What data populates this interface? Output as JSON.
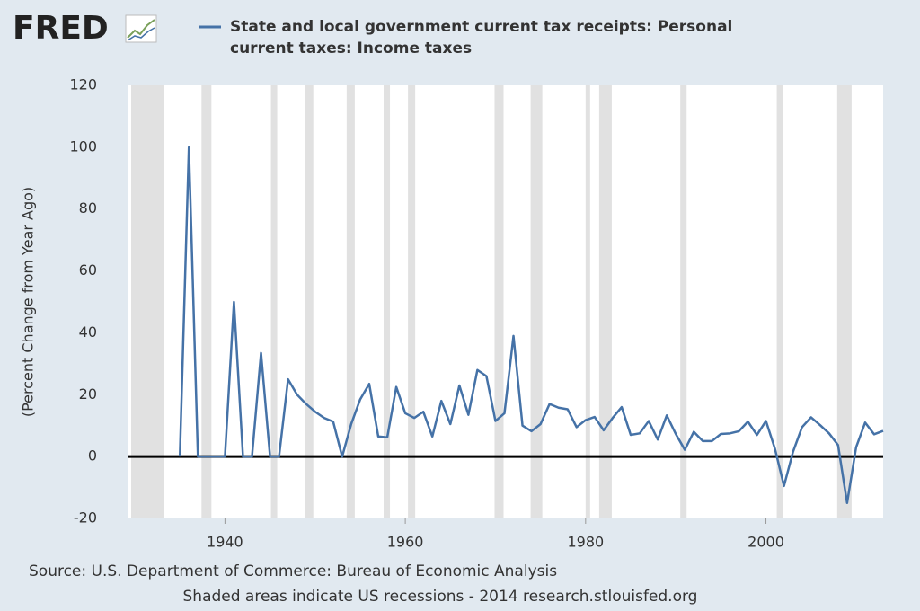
{
  "logo": "FRED",
  "chart_data": {
    "type": "line",
    "y_label": "(Percent Change from Year Ago)",
    "source": "Source: U.S. Department of Commerce: Bureau of Economic Analysis",
    "note": "Shaded areas indicate US recessions - 2014 research.stlouisfed.org",
    "x": [
      1935,
      1936,
      1937,
      1938,
      1939,
      1940,
      1941,
      1942,
      1943,
      1944,
      1945,
      1946,
      1947,
      1948,
      1949,
      1950,
      1951,
      1952,
      1953,
      1954,
      1955,
      1956,
      1957,
      1958,
      1959,
      1960,
      1961,
      1962,
      1963,
      1964,
      1965,
      1966,
      1967,
      1968,
      1969,
      1970,
      1971,
      1972,
      1973,
      1974,
      1975,
      1976,
      1977,
      1978,
      1979,
      1980,
      1981,
      1982,
      1983,
      1984,
      1985,
      1986,
      1987,
      1988,
      1989,
      1990,
      1991,
      1992,
      1993,
      1994,
      1995,
      1996,
      1997,
      1998,
      1999,
      2000,
      2001,
      2002,
      2003,
      2004,
      2005,
      2006,
      2007,
      2008,
      2009,
      2010,
      2011,
      2012,
      2013
    ],
    "series": [
      {
        "name": "State and local government current tax receipts: Personal current taxes: Income taxes",
        "color": "#4572a7",
        "values": [
          0,
          100,
          0,
          0,
          0,
          0,
          50,
          0,
          0,
          33.5,
          0,
          0,
          25,
          20,
          17,
          14.5,
          12.5,
          11.3,
          0,
          10.5,
          18.5,
          23.5,
          6.5,
          6.2,
          22.5,
          14,
          12.5,
          14.5,
          6.5,
          18,
          10.5,
          23,
          13.5,
          28,
          26,
          11.5,
          14,
          39,
          10,
          8.2,
          10.5,
          17,
          15.8,
          15.3,
          9.5,
          11.8,
          12.8,
          8.5,
          12.5,
          16,
          7,
          7.5,
          11.5,
          5.5,
          13.3,
          7.3,
          2.2,
          8,
          5,
          5,
          7.3,
          7.5,
          8.2,
          11.3,
          7,
          11.5,
          2.5,
          -9.5,
          1.5,
          9.5,
          12.7,
          10.2,
          7.5,
          3.7,
          -15,
          3,
          11,
          7.2,
          8.3
        ]
      }
    ],
    "recessions": [
      [
        1929.6,
        1933.2
      ],
      [
        1937.4,
        1938.5
      ],
      [
        1945.1,
        1945.8
      ],
      [
        1948.9,
        1949.8
      ],
      [
        1953.5,
        1954.4
      ],
      [
        1957.6,
        1958.3
      ],
      [
        1960.3,
        1961.1
      ],
      [
        1969.9,
        1970.9
      ],
      [
        1973.9,
        1975.2
      ],
      [
        1980.0,
        1980.5
      ],
      [
        1981.5,
        1982.9
      ],
      [
        1990.5,
        1991.2
      ],
      [
        2001.2,
        2001.9
      ],
      [
        2007.9,
        2009.5
      ]
    ],
    "recession_color": "#e1e1e1",
    "xlim": [
      1929.2,
      2013
    ],
    "xticks": [
      1940,
      1960,
      1980,
      2000
    ],
    "ylim": [
      -20,
      120
    ],
    "yticks": [
      -20,
      0,
      20,
      40,
      60,
      80,
      100,
      120
    ],
    "zero_line": true,
    "grid": false
  }
}
